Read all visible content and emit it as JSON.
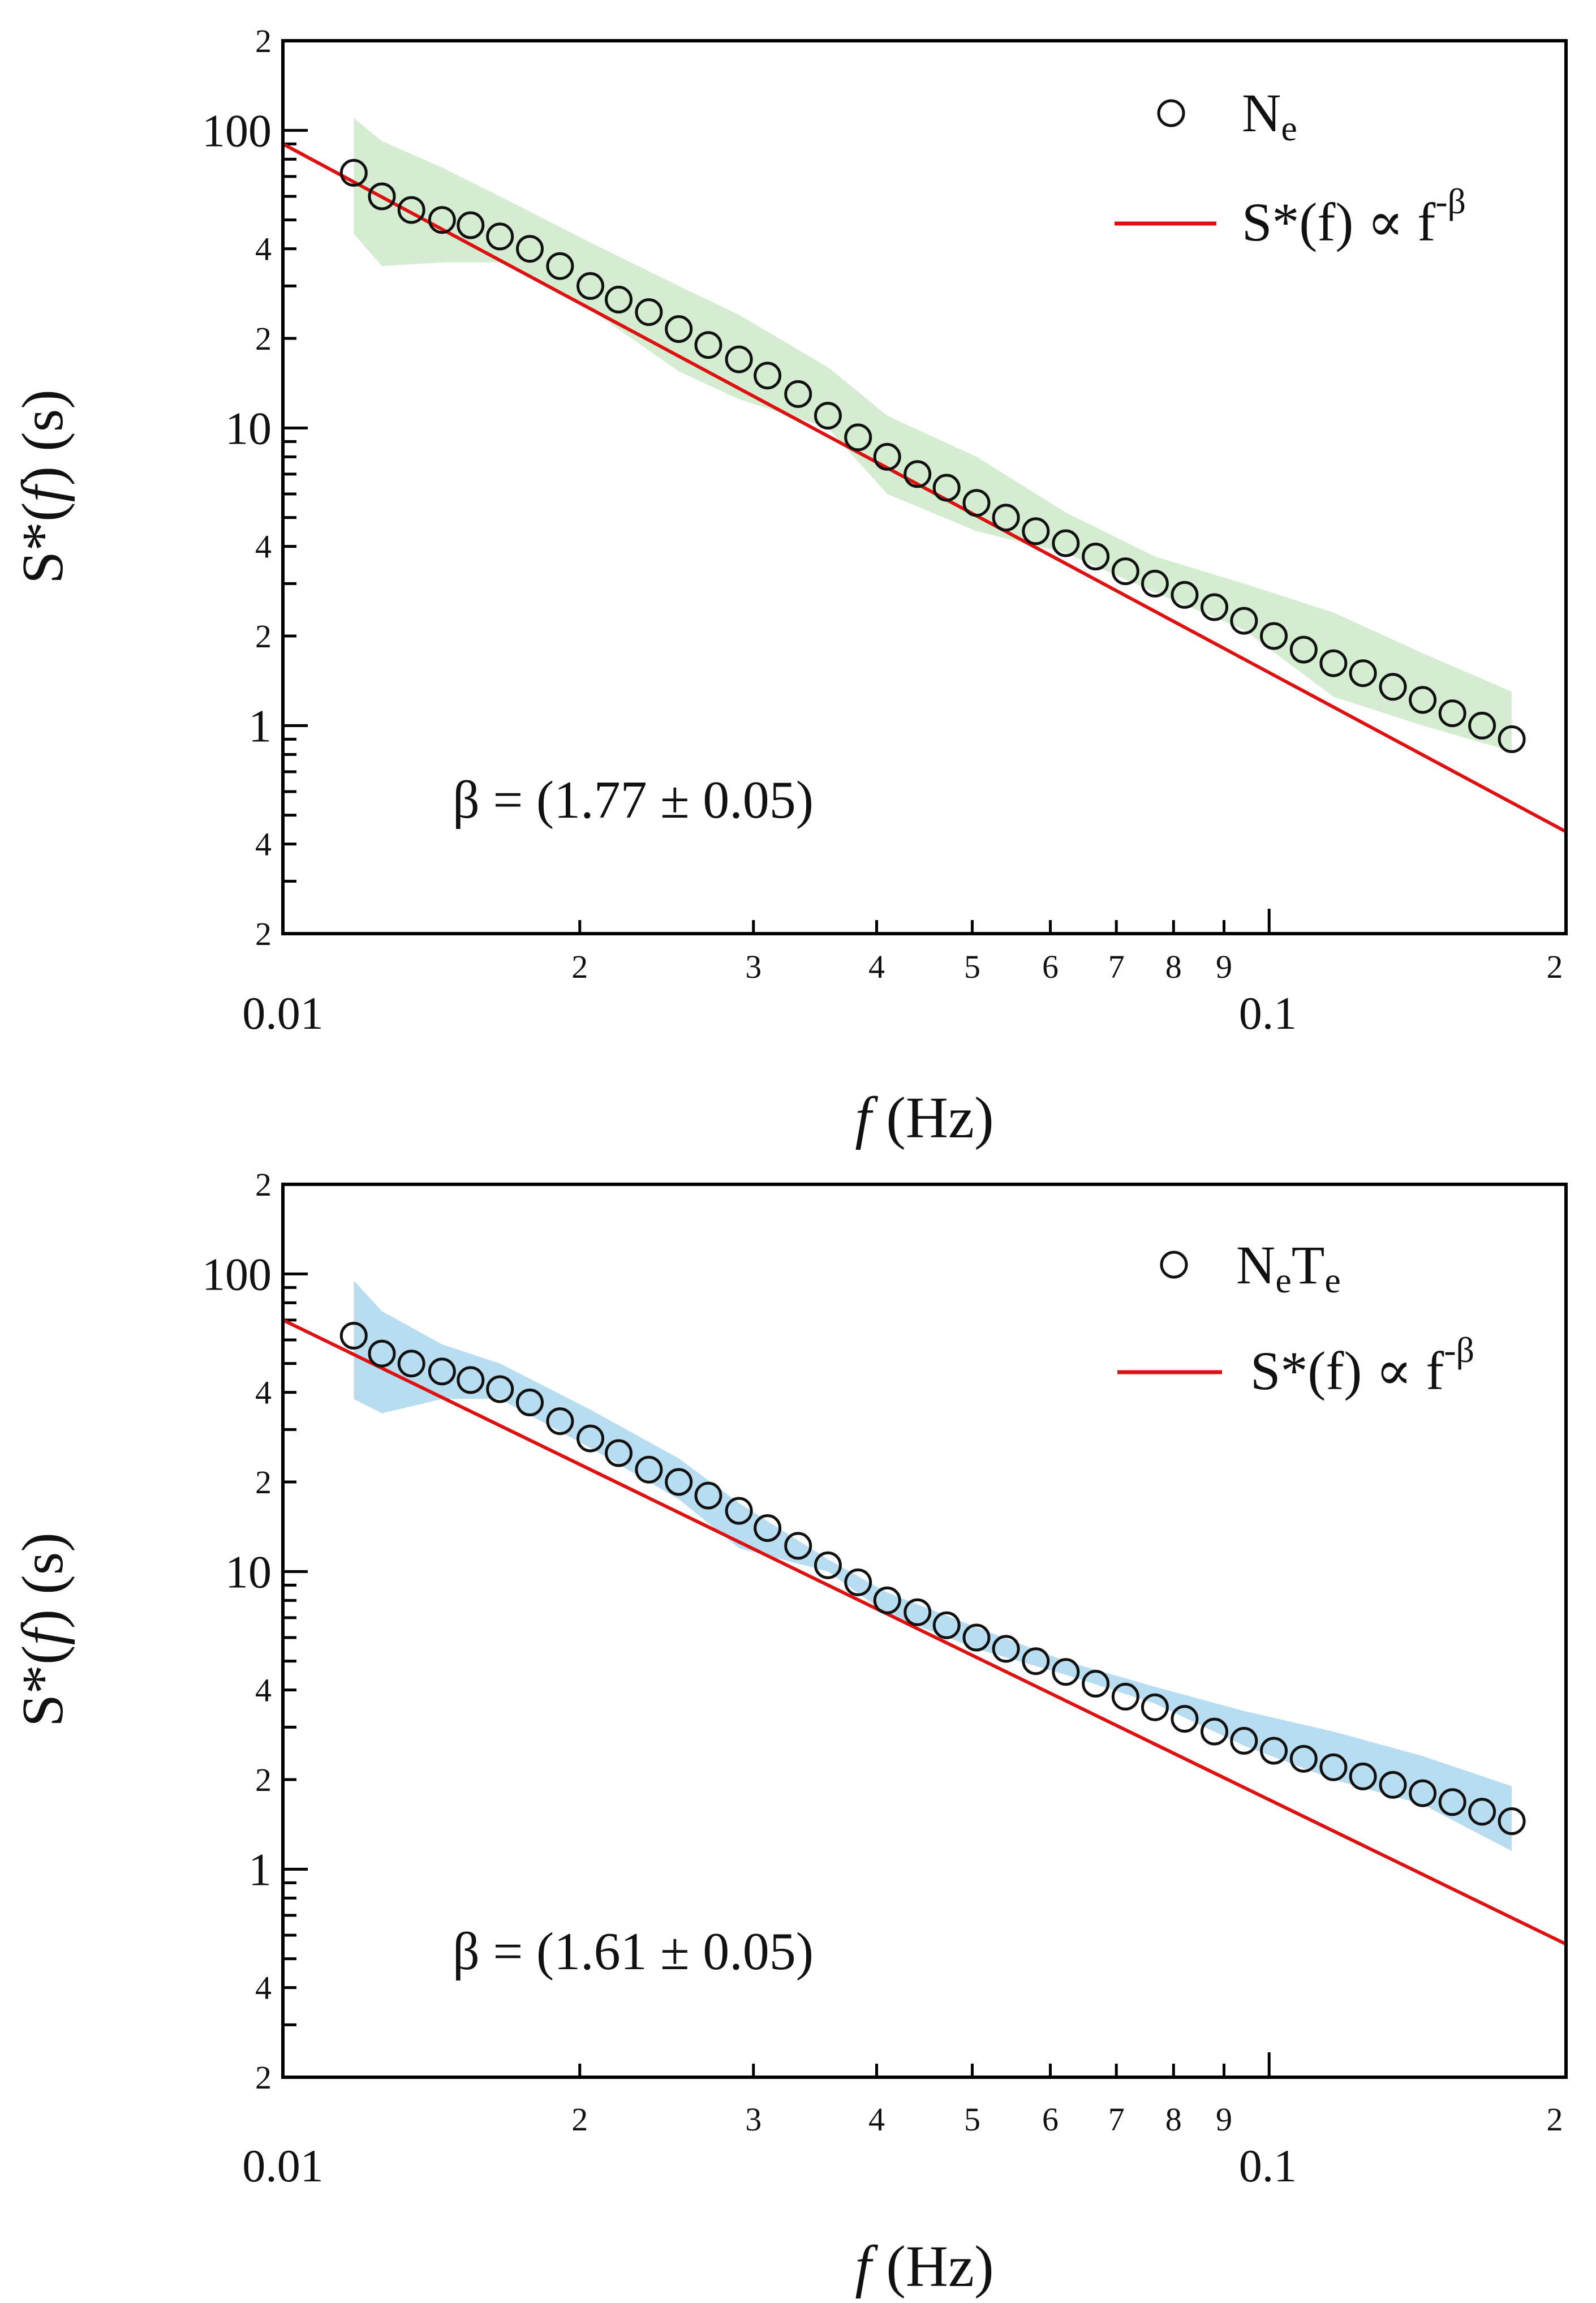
{
  "colors": {
    "fit_line": "#dd1111",
    "band_top": "#c9e8c6",
    "band_bottom": "#a7d5ec",
    "marker_stroke": "#111111",
    "axis": "#000000"
  },
  "chart_data": [
    {
      "type": "scatter",
      "panel": "top",
      "xscale": "log",
      "yscale": "log",
      "xlim": [
        0.01,
        0.2
      ],
      "ylim": [
        0.2,
        200
      ],
      "xlabel": "f (Hz)",
      "ylabel": "S*(f) (s)",
      "legend_position": "top-right",
      "legend": [
        {
          "kind": "marker",
          "label": "N",
          "sub": "e"
        },
        {
          "kind": "line",
          "label_main": "S*(f) ∝ f",
          "label_sup": "-β"
        }
      ],
      "annotation": "β = (1.77 ± 0.05)",
      "x_tick_labels": [
        "0.01",
        "0.1"
      ],
      "x_minor_labels": [
        "2",
        "3",
        "4",
        "5",
        "6",
        "7",
        "8",
        "9",
        "2"
      ],
      "y_tick_labels": [
        "1",
        "10",
        "100"
      ],
      "y_minor_labels": [
        "2",
        "4",
        "2",
        "4",
        "2",
        "4",
        "2",
        "2"
      ],
      "fit": {
        "beta": 1.77,
        "x": [
          0.01,
          0.2
        ],
        "y": [
          90,
          0.44
        ]
      },
      "series": [
        {
          "name": "N_e",
          "x": [
            0.0118,
            0.0126,
            0.0135,
            0.0145,
            0.0155,
            0.0166,
            0.0178,
            0.0191,
            0.0205,
            0.0219,
            0.0235,
            0.0252,
            0.027,
            0.029,
            0.031,
            0.0333,
            0.0357,
            0.0383,
            0.041,
            0.044,
            0.0471,
            0.0505,
            0.0541,
            0.058,
            0.0622,
            0.0667,
            0.0715,
            0.0766,
            0.0821,
            0.088,
            0.0943,
            0.1011,
            0.1084,
            0.1162,
            0.1245,
            0.1335,
            0.1431,
            0.1534,
            0.1644,
            0.1762
          ],
          "y": [
            72,
            60,
            54,
            50,
            48,
            44,
            40,
            35,
            30,
            27,
            24.5,
            21.5,
            19,
            17,
            15,
            13,
            11,
            9.3,
            8,
            7,
            6.3,
            5.6,
            5,
            4.5,
            4.1,
            3.7,
            3.3,
            3,
            2.75,
            2.5,
            2.25,
            2,
            1.8,
            1.62,
            1.5,
            1.35,
            1.22,
            1.1,
            1,
            0.9
          ],
          "band": {
            "x": [
              0.0118,
              0.0126,
              0.0145,
              0.0166,
              0.0205,
              0.0252,
              0.029,
              0.0357,
              0.041,
              0.0505,
              0.0622,
              0.0766,
              0.0943,
              0.1162,
              0.1431,
              0.1762
            ],
            "upper": [
              110,
              92,
              75,
              60,
              42,
              30,
              24,
              16,
              11,
              8,
              5.2,
              3.7,
              3,
              2.4,
              1.75,
              1.3
            ],
            "lower": [
              45,
              35,
              36,
              36,
              25,
              15.5,
              12.5,
              10,
              6,
              4.5,
              3.8,
              2.8,
              2.1,
              1.25,
              1.0,
              0.82
            ]
          }
        }
      ]
    },
    {
      "type": "scatter",
      "panel": "bottom",
      "xscale": "log",
      "yscale": "log",
      "xlim": [
        0.01,
        0.2
      ],
      "ylim": [
        0.2,
        200
      ],
      "xlabel": "f (Hz)",
      "ylabel": "S*(f) (s)",
      "legend_position": "top-right",
      "legend": [
        {
          "kind": "marker",
          "label": "N",
          "sub": "e",
          "label2": "T",
          "sub2": "e"
        },
        {
          "kind": "line",
          "label_main": "S*(f) ∝ f",
          "label_sup": "-β"
        }
      ],
      "annotation": "β = (1.61 ± 0.05)",
      "x_tick_labels": [
        "0.01",
        "0.1"
      ],
      "x_minor_labels": [
        "2",
        "3",
        "4",
        "5",
        "6",
        "7",
        "8",
        "9",
        "2"
      ],
      "y_tick_labels": [
        "1",
        "10",
        "100"
      ],
      "y_minor_labels": [
        "2",
        "4",
        "2",
        "4",
        "2",
        "4",
        "2",
        "2"
      ],
      "fit": {
        "beta": 1.61,
        "x": [
          0.01,
          0.2
        ],
        "y": [
          70,
          0.56
        ]
      },
      "series": [
        {
          "name": "N_eT_e",
          "x": [
            0.0118,
            0.0126,
            0.0135,
            0.0145,
            0.0155,
            0.0166,
            0.0178,
            0.0191,
            0.0205,
            0.0219,
            0.0235,
            0.0252,
            0.027,
            0.029,
            0.031,
            0.0333,
            0.0357,
            0.0383,
            0.041,
            0.044,
            0.0471,
            0.0505,
            0.0541,
            0.058,
            0.0622,
            0.0667,
            0.0715,
            0.0766,
            0.0821,
            0.088,
            0.0943,
            0.1011,
            0.1084,
            0.1162,
            0.1245,
            0.1335,
            0.1431,
            0.1534,
            0.1644,
            0.1762
          ],
          "y": [
            62,
            54,
            50,
            47,
            44,
            41,
            37,
            32,
            28,
            25,
            22,
            20,
            18,
            16,
            14,
            12.2,
            10.5,
            9.2,
            8,
            7.3,
            6.6,
            6,
            5.5,
            5,
            4.6,
            4.2,
            3.8,
            3.5,
            3.2,
            2.9,
            2.7,
            2.5,
            2.35,
            2.2,
            2.05,
            1.92,
            1.8,
            1.68,
            1.56,
            1.45
          ],
          "band": {
            "x": [
              0.0118,
              0.0126,
              0.0145,
              0.0166,
              0.0205,
              0.0252,
              0.029,
              0.0357,
              0.041,
              0.0505,
              0.0622,
              0.0766,
              0.0943,
              0.1162,
              0.1431,
              0.1762
            ],
            "upper": [
              95,
              75,
              58,
              50,
              35,
              24,
              17,
              11,
              8.5,
              6.5,
              5,
              4.1,
              3.4,
              2.9,
              2.4,
              1.9
            ],
            "lower": [
              38,
              34,
              38,
              38,
              26,
              17.5,
              12,
              10,
              7.2,
              5.5,
              4.5,
              3.6,
              2.6,
              2.0,
              1.65,
              1.15
            ]
          }
        }
      ]
    }
  ]
}
